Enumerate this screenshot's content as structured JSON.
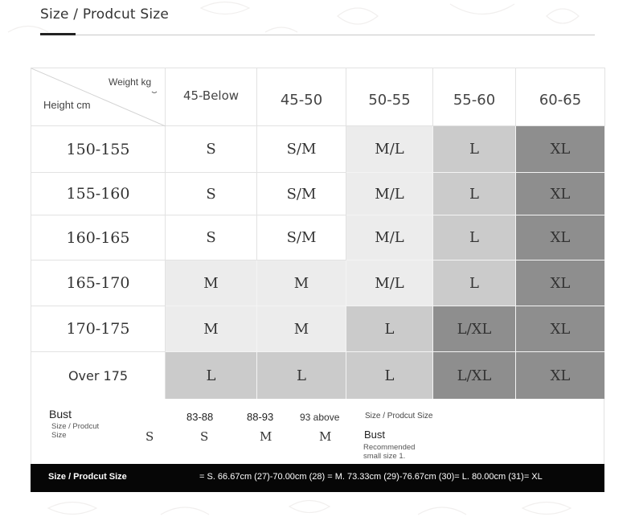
{
  "header": {
    "title": "Size / Prodcut Size"
  },
  "table": {
    "corner": {
      "weight_label": "Weight kg",
      "height_label": "Height cm"
    },
    "columns": [
      "45-Below",
      "45-50",
      "50-55",
      "55-60",
      "60-65"
    ],
    "rows": [
      {
        "label": "150-155",
        "cells": [
          "S",
          "S/M",
          "M/L",
          "L",
          "XL"
        ]
      },
      {
        "label": "155-160",
        "cells": [
          "S",
          "S/M",
          "M/L",
          "L",
          "XL"
        ]
      },
      {
        "label": "160-165",
        "cells": [
          "S",
          "S/M",
          "M/L",
          "L",
          "XL"
        ]
      },
      {
        "label": "165-170",
        "cells": [
          "M",
          "M",
          "M/L",
          "L",
          "XL"
        ]
      },
      {
        "label": "170-175",
        "cells": [
          "M",
          "M",
          "L",
          "L/XL",
          "XL"
        ]
      },
      {
        "label": "Over 175",
        "cells": [
          "L",
          "L",
          "L",
          "L/XL",
          "XL"
        ]
      }
    ],
    "colors": {
      "white": "#ffffff",
      "light": "#ececec",
      "medium": "#cbcbcb",
      "dark": "#8e8e8e"
    },
    "shades": [
      [
        "white",
        "white",
        "light",
        "medium",
        "dark"
      ],
      [
        "white",
        "white",
        "light",
        "medium",
        "dark"
      ],
      [
        "white",
        "white",
        "light",
        "medium",
        "dark"
      ],
      [
        "light",
        "light",
        "light",
        "medium",
        "dark"
      ],
      [
        "light",
        "light",
        "medium",
        "dark",
        "dark"
      ],
      [
        "medium",
        "medium",
        "medium",
        "dark",
        "dark"
      ]
    ]
  },
  "bust": {
    "title": "Bust",
    "subtitle": "Size / Prodcut Size",
    "sizes": [
      "S",
      "S",
      "M",
      "M"
    ],
    "ranges": [
      "83-88",
      "88-93",
      "93 above"
    ],
    "note_title": "Size / Prodcut Size",
    "note_bust": "Bust",
    "note_recommended": "Recommended small size 1."
  },
  "footer": {
    "label": "Size / Prodcut Size",
    "text": "= S. 66.67cm (27)-70.00cm (28) = M. 73.33cm (29)-76.67cm (30)= L. 80.00cm (31)= XL"
  }
}
